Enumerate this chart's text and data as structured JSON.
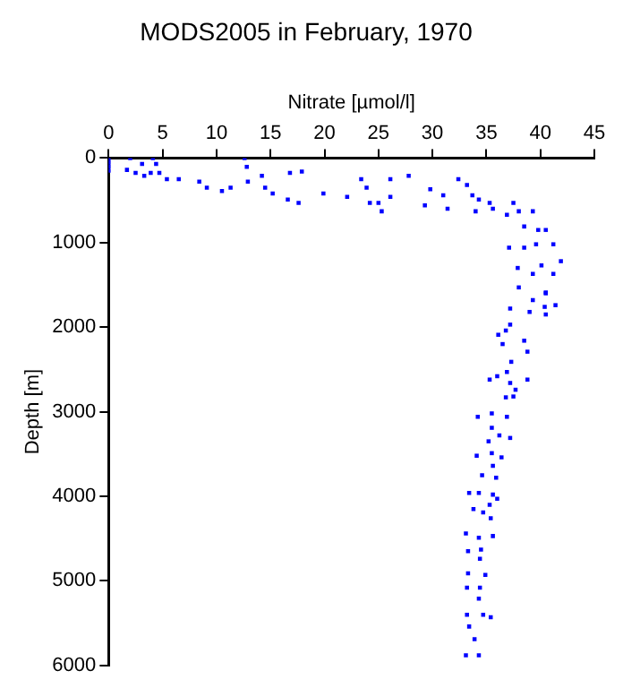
{
  "chart_data": {
    "type": "scatter",
    "title": "MODS2005 in February, 1970",
    "xlabel": "Nitrate [µmol/l]",
    "ylabel": "Depth [m]",
    "xlim": [
      0,
      45
    ],
    "xticks": [
      0,
      5,
      10,
      15,
      20,
      25,
      30,
      35,
      40,
      45
    ],
    "ylim": [
      6000,
      0
    ],
    "yticks": [
      0,
      1000,
      2000,
      3000,
      4000,
      5000,
      6000
    ],
    "grid": false,
    "legend": false,
    "marker": "square",
    "series": [
      {
        "color": "#0000ff",
        "x": [
          0,
          0,
          0,
          0,
          2,
          1.7,
          2.5,
          3.1,
          3.3,
          3.9,
          4.1,
          4.4,
          4.7,
          5.4,
          6.5,
          8.4,
          9.1,
          10.5,
          11.3,
          12.6,
          12.8,
          12.9,
          14.2,
          14.5,
          15.2,
          16.6,
          16.8,
          17.6,
          17.9,
          19.9,
          22.1,
          23.4,
          23.9,
          24.2,
          25,
          25.3,
          26.1,
          26.1,
          27.8,
          29.3,
          29.8,
          31,
          31.4,
          32.4,
          33.2,
          33.7,
          34,
          34.3,
          35.3,
          35.6,
          36.9,
          37.5,
          38,
          38.5,
          39.3,
          39.8,
          40.5,
          37.1,
          38.5,
          39.6,
          41.2,
          41.9,
          40.1,
          41.2,
          37.9,
          39.3,
          38,
          40.5,
          40.5,
          39.3,
          37.2,
          40.4,
          41.4,
          39,
          40.5,
          37.2,
          36.1,
          36.8,
          36.5,
          38.5,
          38.8,
          37.3,
          36.9,
          36,
          35.3,
          38.8,
          37.2,
          37.7,
          36.8,
          37.5,
          34.2,
          35.5,
          36.9,
          35.5,
          36.2,
          37.2,
          35.2,
          34.1,
          35.5,
          36.4,
          35.6,
          34.6,
          35.9,
          33.4,
          34.3,
          35.6,
          36,
          33.8,
          34.7,
          35.3,
          35.4,
          33.1,
          34.3,
          35.6,
          33.3,
          34.5,
          34.4,
          33.3,
          34.9,
          33.2,
          34.4,
          34.3,
          33.2,
          34.7,
          35.4,
          33.4,
          33.9,
          33.1,
          34.3
        ],
        "values": [
          0,
          50,
          100,
          150,
          0,
          140,
          175,
          70,
          210,
          175,
          0,
          70,
          175,
          250,
          250,
          280,
          350,
          390,
          350,
          0,
          105,
          280,
          210,
          350,
          420,
          490,
          175,
          530,
          160,
          420,
          460,
          250,
          350,
          530,
          530,
          630,
          250,
          460,
          210,
          560,
          370,
          440,
          600,
          250,
          320,
          440,
          630,
          490,
          530,
          600,
          670,
          530,
          630,
          810,
          630,
          850,
          850,
          1060,
          1060,
          1020,
          1020,
          1220,
          1270,
          1370,
          1300,
          1370,
          1530,
          1590,
          1600,
          1680,
          1780,
          1760,
          1740,
          1820,
          1850,
          1970,
          2090,
          2040,
          2200,
          2160,
          2290,
          2410,
          2530,
          2580,
          2620,
          2620,
          2660,
          2740,
          2830,
          2820,
          3060,
          3020,
          3060,
          3190,
          3280,
          3310,
          3350,
          3520,
          3490,
          3540,
          3640,
          3750,
          3780,
          3960,
          3960,
          3980,
          4030,
          4150,
          4190,
          4100,
          4260,
          4440,
          4490,
          4470,
          4650,
          4630,
          4740,
          4910,
          4930,
          5080,
          5080,
          5210,
          5400,
          5400,
          5430,
          5540,
          5690,
          5880,
          5880
        ]
      }
    ]
  }
}
